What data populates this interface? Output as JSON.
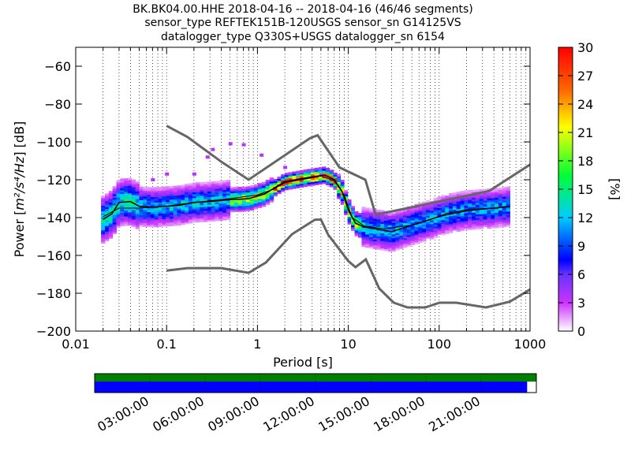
{
  "chart_data": {
    "type": "heatmap",
    "title_lines": [
      "BK.BK04.00.HHE   2018-04-16 -- 2018-04-16  (46/46 segments)",
      "sensor_type REFTEK151B-120USGS sensor_sn G14125VS",
      "datalogger_type Q330S+USGS datalogger_sn 6154"
    ],
    "xlabel": "Period [s]",
    "ylabel_prefix": "Power [",
    "ylabel_units": "m²/s⁴/Hz",
    "ylabel_suffix": "] [dB]",
    "x_scale": "log",
    "xlim": [
      0.01,
      1000
    ],
    "ylim": [
      -200,
      -50
    ],
    "x_ticks": [
      0.01,
      0.1,
      1,
      10,
      100,
      1000
    ],
    "x_tick_labels": [
      "0.01",
      "0.1",
      "1",
      "10",
      "100",
      "1000"
    ],
    "y_ticks": [
      -200,
      -180,
      -160,
      -140,
      -120,
      -100,
      -80,
      -60
    ],
    "y_tick_labels": [
      "−200",
      "−180",
      "−160",
      "−140",
      "−120",
      "−100",
      "−80",
      "−60"
    ],
    "grid": "dotted-vertical",
    "colorbar": {
      "label": "[%]",
      "range": [
        0,
        30
      ],
      "ticks": [
        0,
        3,
        6,
        9,
        12,
        15,
        18,
        21,
        24,
        27,
        30
      ],
      "colormap": "pqlx"
    },
    "noise_model_high": [
      [
        0.1,
        -91.5
      ],
      [
        0.17,
        -97.4
      ],
      [
        0.4,
        -110.5
      ],
      [
        0.8,
        -120
      ],
      [
        3.8,
        -98
      ],
      [
        4.6,
        -96.5
      ],
      [
        8,
        -113.5
      ],
      [
        15.4,
        -120
      ],
      [
        20,
        -138.5
      ],
      [
        354,
        -126
      ],
      [
        1000,
        -112
      ]
    ],
    "noise_model_low": [
      [
        0.1,
        -168
      ],
      [
        0.17,
        -166.7
      ],
      [
        0.4,
        -166.7
      ],
      [
        0.8,
        -169.2
      ],
      [
        1.24,
        -163.7
      ],
      [
        2.4,
        -148.8
      ],
      [
        4.3,
        -141.1
      ],
      [
        5,
        -141.1
      ],
      [
        6,
        -149
      ],
      [
        10,
        -163
      ],
      [
        12,
        -166.2
      ],
      [
        15.6,
        -162.1
      ],
      [
        21.9,
        -177.5
      ],
      [
        31.6,
        -185
      ],
      [
        45,
        -187.5
      ],
      [
        70,
        -187.5
      ],
      [
        101,
        -185
      ],
      [
        154,
        -185
      ],
      [
        328,
        -187.5
      ],
      [
        600,
        -184.4
      ],
      [
        1000,
        -178
      ]
    ],
    "mode_curve": [
      [
        0.02,
        -141
      ],
      [
        0.025,
        -138
      ],
      [
        0.03,
        -132
      ],
      [
        0.04,
        -131.5
      ],
      [
        0.05,
        -134
      ],
      [
        0.07,
        -134.5
      ],
      [
        0.1,
        -134
      ],
      [
        0.14,
        -133.5
      ],
      [
        0.2,
        -132
      ],
      [
        0.3,
        -131.5
      ],
      [
        0.5,
        -130.5
      ],
      [
        0.8,
        -130
      ],
      [
        1.2,
        -127.5
      ],
      [
        2,
        -121
      ],
      [
        3,
        -119.5
      ],
      [
        4,
        -118.5
      ],
      [
        5.5,
        -117.5
      ],
      [
        7,
        -120
      ],
      [
        8.5,
        -126
      ],
      [
        10,
        -136
      ],
      [
        12,
        -143
      ],
      [
        15,
        -145
      ],
      [
        20,
        -146
      ],
      [
        30,
        -147.5
      ],
      [
        50,
        -144
      ],
      [
        80,
        -141
      ],
      [
        120,
        -138
      ],
      [
        200,
        -136
      ],
      [
        400,
        -135
      ],
      [
        600,
        -134
      ]
    ],
    "mean_curve": [
      [
        0.02,
        -139.5
      ],
      [
        0.03,
        -135
      ],
      [
        0.05,
        -135
      ],
      [
        0.1,
        -134
      ],
      [
        0.2,
        -132
      ],
      [
        0.5,
        -130
      ],
      [
        1,
        -128
      ],
      [
        1.5,
        -125
      ],
      [
        2,
        -121.5
      ],
      [
        3,
        -120
      ],
      [
        5,
        -118
      ],
      [
        7,
        -120.5
      ],
      [
        9,
        -128
      ],
      [
        11,
        -140
      ],
      [
        15,
        -144.5
      ],
      [
        25,
        -146
      ],
      [
        50,
        -144
      ],
      [
        100,
        -139.5
      ],
      [
        200,
        -136.5
      ],
      [
        600,
        -134
      ]
    ],
    "density_bands": [
      {
        "x0": 0.019,
        "x1": 0.05,
        "center": -135,
        "spread": 6,
        "peak": 14
      },
      {
        "x0": 0.05,
        "x1": 0.5,
        "center": -133,
        "spread": 5,
        "peak": 12
      },
      {
        "x0": 0.5,
        "x1": 1.5,
        "center": -130,
        "spread": 3,
        "peak": 20
      },
      {
        "x0": 1.5,
        "x1": 7.5,
        "center": -119.5,
        "spread": 2,
        "peak": 28
      },
      {
        "x0": 7.5,
        "x1": 14,
        "center": -133,
        "spread": 3,
        "peak": 22
      },
      {
        "x0": 14,
        "x1": 40,
        "center": -146,
        "spread": 5,
        "peak": 12
      },
      {
        "x0": 40,
        "x1": 600,
        "center": -137,
        "spread": 5,
        "peak": 11
      }
    ],
    "outlier_bump": [
      [
        0.07,
        -120
      ],
      [
        0.1,
        -117
      ],
      [
        0.2,
        -117
      ],
      [
        0.28,
        -108
      ],
      [
        0.32,
        -104
      ],
      [
        0.5,
        -101
      ],
      [
        0.7,
        -101.5
      ],
      [
        1.1,
        -107
      ],
      [
        2,
        -113.5
      ],
      [
        3,
        -116
      ],
      [
        5,
        -117.5
      ]
    ],
    "time_axis": {
      "tick_labels": [
        "03:00:00",
        "06:00:00",
        "09:00:00",
        "12:00:00",
        "15:00:00",
        "18:00:00",
        "21:00:00"
      ],
      "tick_hours": [
        3,
        6,
        9,
        12,
        15,
        18,
        21
      ],
      "range_hours": [
        0,
        24
      ],
      "coverage_top": {
        "from": 0,
        "to": 24,
        "color": "#008000"
      },
      "coverage_bottom": {
        "from": 0,
        "to": 23.5,
        "color": "#0000ff"
      }
    }
  }
}
